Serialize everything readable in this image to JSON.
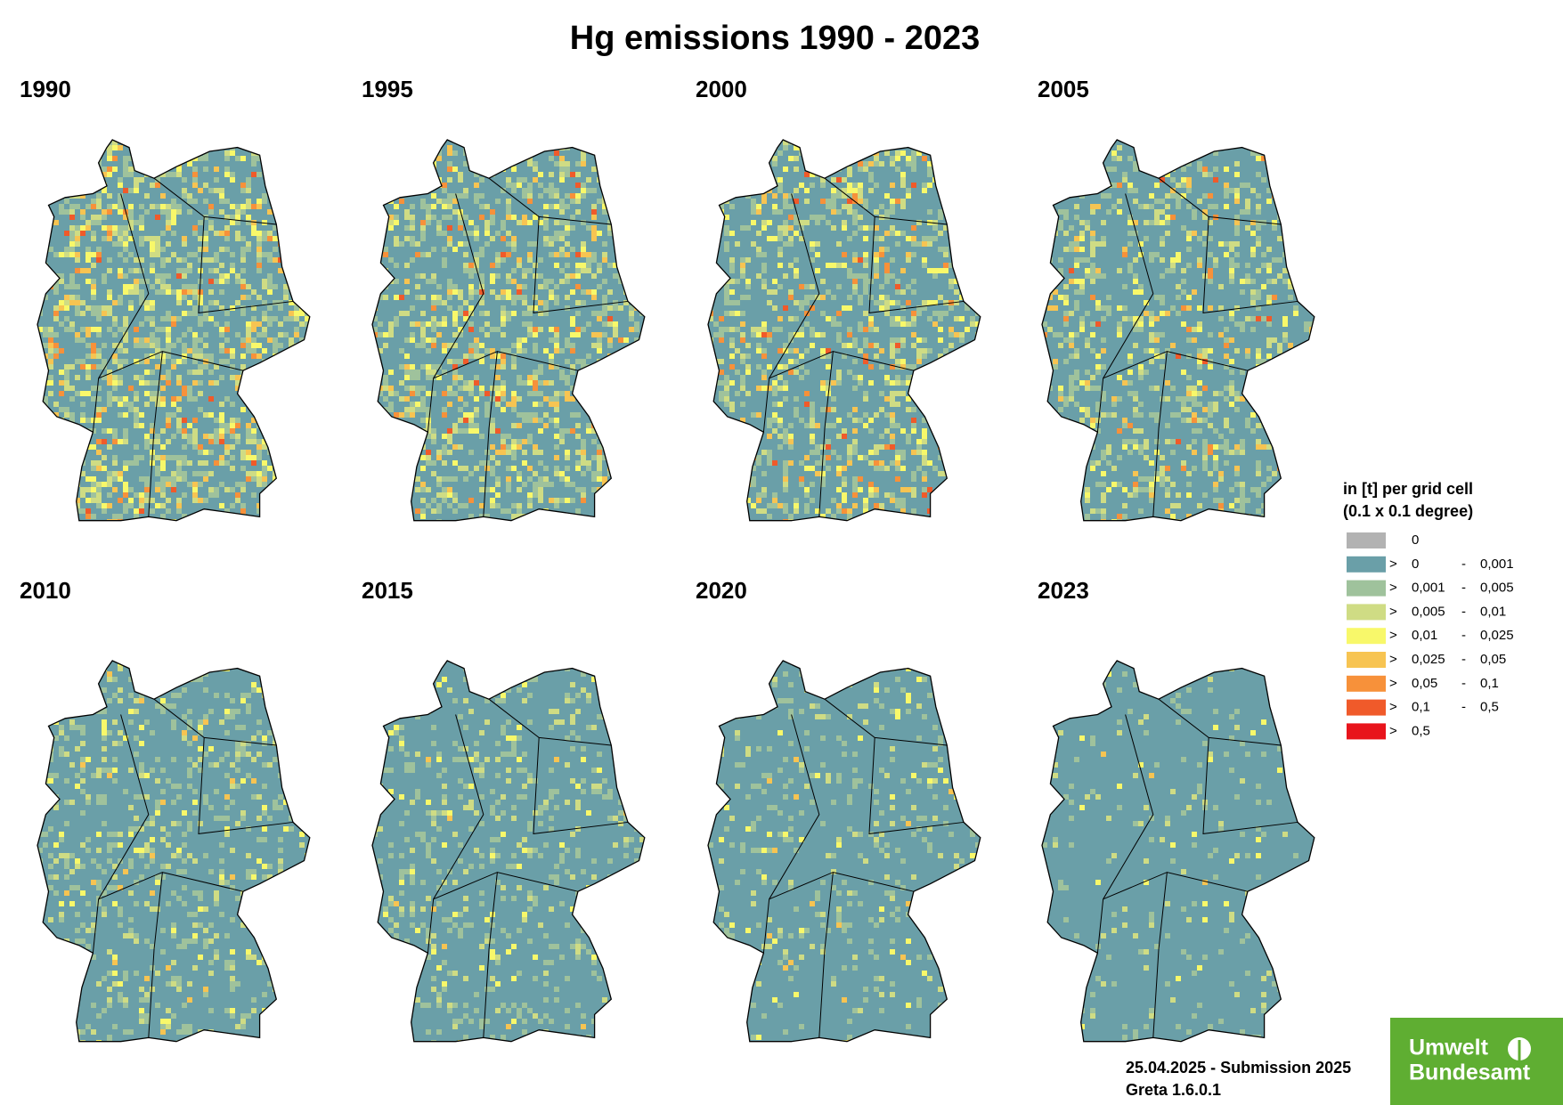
{
  "title": "Hg emissions 1990 - 2023",
  "maps": [
    {
      "year": "1990"
    },
    {
      "year": "1995"
    },
    {
      "year": "2000"
    },
    {
      "year": "2005"
    },
    {
      "year": "2010"
    },
    {
      "year": "2015"
    },
    {
      "year": "2020"
    },
    {
      "year": "2023"
    }
  ],
  "legend": {
    "title_lines": [
      "in [t] per grid cell",
      "(0.1 x 0.1 degree)"
    ],
    "items": [
      {
        "color": "#b2b2b2",
        "from": "0"
      },
      {
        "color": "#6a9fa8",
        "prefix": ">",
        "from": "0",
        "dash": "-",
        "to": "0,001"
      },
      {
        "color": "#9fc29c",
        "prefix": ">",
        "from": "0,001",
        "dash": "-",
        "to": "0,005"
      },
      {
        "color": "#cfdc84",
        "prefix": ">",
        "from": "0,005",
        "dash": "-",
        "to": "0,01"
      },
      {
        "color": "#f8f86a",
        "prefix": ">",
        "from": "0,01",
        "dash": "-",
        "to": "0,025"
      },
      {
        "color": "#f7c452",
        "prefix": ">",
        "from": "0,025",
        "dash": "-",
        "to": "0,05"
      },
      {
        "color": "#f7913a",
        "prefix": ">",
        "from": "0,05",
        "dash": "-",
        "to": "0,1"
      },
      {
        "color": "#f05a2a",
        "prefix": ">",
        "from": "0,1",
        "dash": "-",
        "to": "0,5"
      },
      {
        "color": "#e8141c",
        "prefix": ">",
        "from": "0,5"
      }
    ]
  },
  "footer": {
    "line1": "25.04.2025 - Submission 2025",
    "line2": "Greta 1.6.0.1"
  },
  "logo": {
    "line1": "Umwelt",
    "line2": "Bundesamt"
  }
}
